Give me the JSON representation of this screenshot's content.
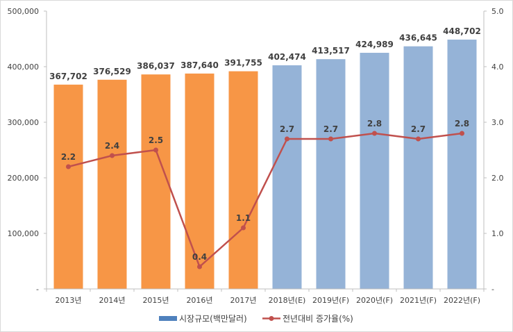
{
  "chart_data": {
    "type": "bar",
    "categories": [
      "2013년",
      "2014년",
      "2015년",
      "2016년",
      "2017년",
      "2018년(E)",
      "2019년(F)",
      "2020년(F)",
      "2021년(F)",
      "2022년(F)"
    ],
    "series": [
      {
        "name": "시장규모(백만달러)",
        "type": "bar",
        "axis": "left",
        "values": [
          367702,
          376529,
          386037,
          387640,
          391755,
          402474,
          413517,
          424989,
          436645,
          448702
        ],
        "labels": [
          "367,702",
          "376,529",
          "386,037",
          "387,640",
          "391,755",
          "402,474",
          "413,517",
          "424,989",
          "436,645",
          "448,702"
        ]
      },
      {
        "name": "전년대비 증가율(%)",
        "type": "line",
        "axis": "right",
        "values": [
          2.2,
          2.4,
          2.5,
          0.4,
          1.1,
          2.7,
          2.7,
          2.8,
          2.7,
          2.8
        ],
        "labels": [
          "2.2",
          "2.4",
          "2.5",
          "0.4",
          "1.1",
          "2.7",
          "2.7",
          "2.8",
          "2.7",
          "2.8"
        ]
      }
    ],
    "y_left": {
      "lim": [
        0,
        500000
      ],
      "ticks": [
        0,
        100000,
        200000,
        300000,
        400000,
        500000
      ],
      "tick_labels": [
        "-",
        "100,000",
        "200,000",
        "300,000",
        "400,000",
        "500,000"
      ]
    },
    "y_right": {
      "lim": [
        0,
        5
      ],
      "ticks": [
        0,
        1,
        2,
        3,
        4,
        5
      ],
      "tick_labels": [
        "-",
        "1.0",
        "2.0",
        "3.0",
        "4.0",
        "5.0"
      ]
    },
    "grid": false,
    "legend_position": "bottom",
    "colors": {
      "actual_bar": "#F79646",
      "forecast_bar": "#95B3D7",
      "line": "#C0504D",
      "legend_bar": "#4F81BD"
    },
    "actual_count": 5
  }
}
